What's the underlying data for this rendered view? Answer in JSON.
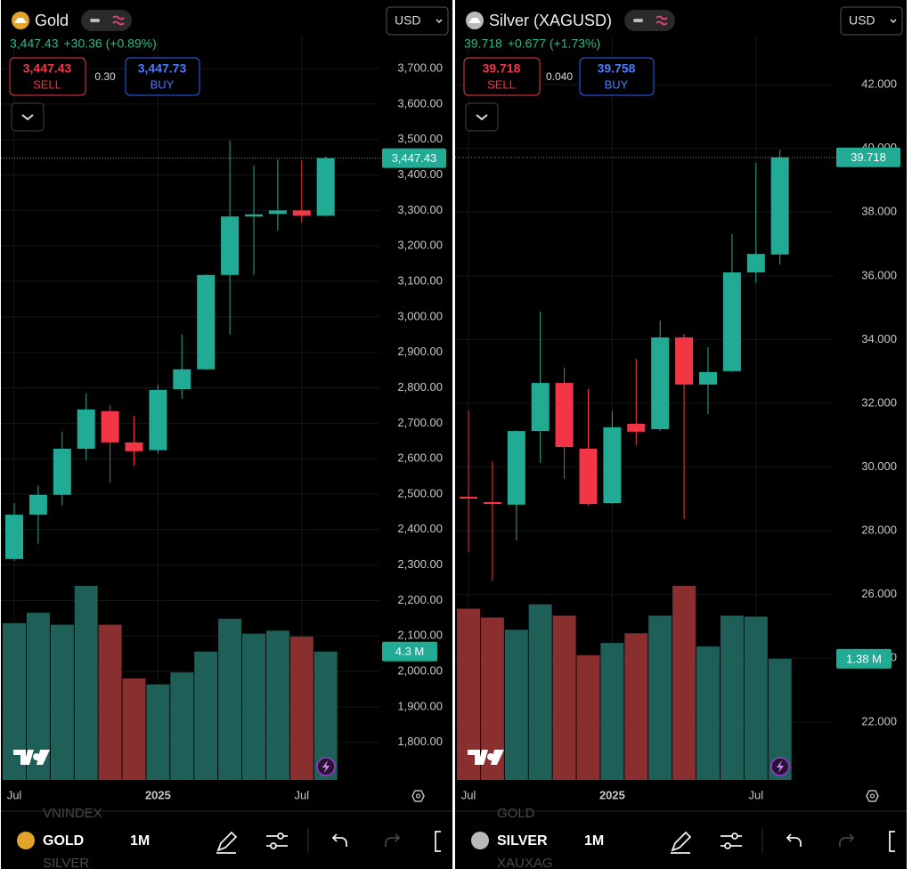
{
  "panels": [
    {
      "title": "Gold",
      "logo_color": "#e3a42a",
      "currency": "USD",
      "price": "3,447.43",
      "change": "+30.36 (+0.89%)",
      "sell": "3,447.43",
      "sell_label": "SELL",
      "spread": "0.30",
      "buy": "3,447.73",
      "buy_label": "BUY",
      "symbol": "GOLD",
      "interval": "1M",
      "watchlist_above": "VNINDEX",
      "watchlist_below": "SILVER"
    },
    {
      "title": "Silver (XAGUSD)",
      "logo_color": "#b9b9b9",
      "currency": "USD",
      "price": "39.718",
      "change": "+0.677 (+1.73%)",
      "sell": "39.718",
      "sell_label": "SELL",
      "spread": "0.040",
      "buy": "39.758",
      "buy_label": "BUY",
      "symbol": "SILVER",
      "interval": "1M",
      "watchlist_above": "GOLD",
      "watchlist_below": "XAUXAG"
    }
  ],
  "chart_data": [
    {
      "type": "candlestick",
      "categories": [
        "Jul",
        null,
        null,
        null,
        null,
        null,
        "2025",
        null,
        null,
        null,
        null,
        null,
        "Jul",
        null
      ],
      "open": [
        2317,
        2442,
        2498,
        2628,
        2734,
        2646,
        2624,
        2796,
        2852,
        3118,
        3283,
        3290,
        3300,
        3285
      ],
      "high": [
        2475,
        2525,
        2676,
        2784,
        2751,
        2721,
        2809,
        2950,
        3120,
        3497,
        3426,
        3444,
        3441,
        3452
      ],
      "low": [
        2312,
        2360,
        2468,
        2596,
        2533,
        2581,
        2615,
        2769,
        2850,
        2950,
        3118,
        3243,
        3266,
        3283
      ],
      "close": [
        2442,
        2498,
        2628,
        2739,
        2646,
        2621,
        2794,
        2852,
        3118,
        3283,
        3289,
        3300,
        3285,
        3447.43
      ],
      "close_last_label": "3,447.43",
      "volume": [
        5.25,
        5.6,
        5.2,
        6.5,
        5.2,
        3.4,
        3.2,
        3.6,
        4.3,
        5.4,
        4.9,
        5.0,
        4.8,
        4.3
      ],
      "volume_last_label": "4.3 M",
      "ylim": [
        1694,
        3793
      ],
      "yticks": [
        {
          "value": 1800,
          "label": "1,800.00"
        },
        {
          "value": 1900,
          "label": "1,900.00"
        },
        {
          "value": 2000,
          "label": "2,000.00"
        },
        {
          "value": 2100,
          "label": "2,100.00"
        },
        {
          "value": 2200,
          "label": "2,200.00"
        },
        {
          "value": 2300,
          "label": "2,300.00"
        },
        {
          "value": 2400,
          "label": "2,400.00"
        },
        {
          "value": 2500,
          "label": "2,500.00"
        },
        {
          "value": 2600,
          "label": "2,600.00"
        },
        {
          "value": 2700,
          "label": "2,700.00"
        },
        {
          "value": 2800,
          "label": "2,800.00"
        },
        {
          "value": 2900,
          "label": "2,900.00"
        },
        {
          "value": 3000,
          "label": "3,000.00"
        },
        {
          "value": 3100,
          "label": "3,100.00"
        },
        {
          "value": 3200,
          "label": "3,200.00"
        },
        {
          "value": 3300,
          "label": "3,300.00"
        },
        {
          "value": 3400,
          "label": "3,400.00"
        },
        {
          "value": 3500,
          "label": "3,500.00"
        },
        {
          "value": 3600,
          "label": "3,600.00"
        },
        {
          "value": 3700,
          "label": "3,700.00"
        }
      ],
      "grid": true,
      "up_color": "#22ab94",
      "down_color": "#f23645",
      "volume_up_color": "#1e5f57",
      "volume_down_color": "#8a2f2f"
    },
    {
      "type": "candlestick",
      "categories": [
        "Jul",
        null,
        null,
        null,
        null,
        null,
        "2025",
        null,
        null,
        null,
        null,
        null,
        "Jul",
        null
      ],
      "open": [
        29.07,
        28.9,
        28.82,
        31.13,
        32.64,
        30.58,
        28.87,
        31.36,
        31.19,
        34.07,
        32.59,
        33.01,
        36.11,
        36.67
      ],
      "high": [
        31.78,
        30.18,
        31.15,
        34.88,
        33.12,
        32.45,
        31.75,
        33.4,
        34.6,
        34.18,
        33.76,
        37.31,
        39.54,
        39.96
      ],
      "low": [
        27.33,
        26.44,
        27.7,
        30.13,
        29.63,
        28.79,
        28.85,
        30.69,
        31.13,
        28.37,
        31.66,
        32.98,
        35.77,
        36.36
      ],
      "close": [
        29.01,
        28.84,
        31.13,
        32.64,
        30.63,
        28.84,
        31.25,
        31.11,
        34.07,
        32.59,
        32.98,
        36.11,
        36.69,
        39.718
      ],
      "close_last_label": "39.718",
      "volume": [
        1.95,
        1.85,
        1.71,
        2.0,
        1.87,
        1.42,
        1.56,
        1.67,
        1.87,
        2.21,
        1.52,
        1.87,
        1.86,
        1.38
      ],
      "volume_last_label": "1.38 M",
      "ylim": [
        20.18,
        43.54
      ],
      "yticks": [
        {
          "value": 22,
          "label": "22.000"
        },
        {
          "value": 24,
          "label": "24.000"
        },
        {
          "value": 26,
          "label": "26.000"
        },
        {
          "value": 28,
          "label": "28.000"
        },
        {
          "value": 30,
          "label": "30.000"
        },
        {
          "value": 32,
          "label": "32.000"
        },
        {
          "value": 34,
          "label": "34.000"
        },
        {
          "value": 36,
          "label": "36.000"
        },
        {
          "value": 38,
          "label": "38.000"
        },
        {
          "value": 40,
          "label": "40.000"
        },
        {
          "value": 42,
          "label": "42.000"
        }
      ],
      "grid": true,
      "up_color": "#22ab94",
      "down_color": "#f23645",
      "volume_up_color": "#1e5f57",
      "volume_down_color": "#8a2f2f"
    }
  ]
}
